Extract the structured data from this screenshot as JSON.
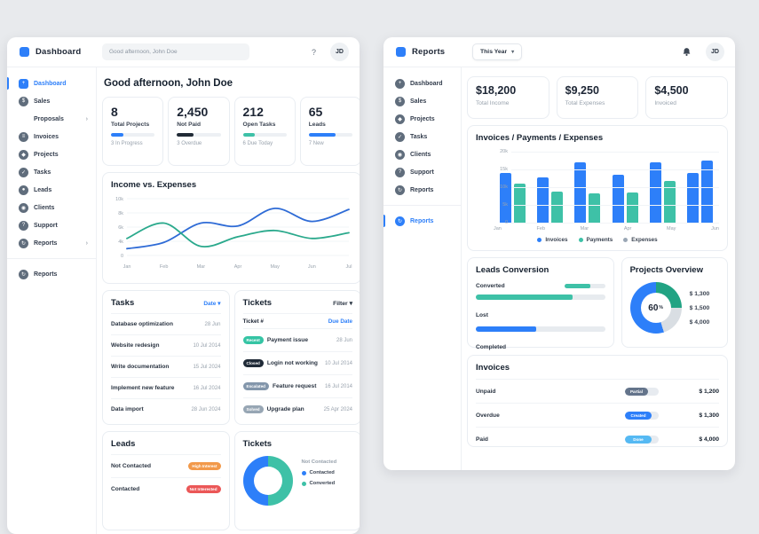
{
  "glyphs": {
    "caret": "▾",
    "chevron": "›"
  },
  "left": {
    "brand": "Dashboard",
    "search_value": "Good afternoon, John Doe",
    "help": "?",
    "avatar": "JD",
    "sidebar": [
      {
        "label": "Dashboard",
        "icon": "dashboard",
        "active": true,
        "shape": "square"
      },
      {
        "label": "Sales",
        "icon": "sales"
      },
      {
        "label": "Proposals",
        "sub": true,
        "chevron": true
      },
      {
        "label": "Invoices",
        "icon": "invoices"
      },
      {
        "label": "Projects",
        "icon": "projects"
      },
      {
        "label": "Tasks",
        "icon": "tasks"
      },
      {
        "label": "Leads",
        "icon": "leads"
      },
      {
        "label": "Clients",
        "icon": "clients"
      },
      {
        "label": "Support",
        "icon": "support"
      },
      {
        "label": "Reports",
        "icon": "reports",
        "chevron": true
      }
    ],
    "sidebar_footer": {
      "label": "Reports",
      "icon": "reports"
    },
    "greeting": "Good afternoon, John Doe",
    "stats": [
      {
        "value": "8",
        "label": "Total Projects",
        "sub": "3 In Progress",
        "bar_color": "#2d7ff9",
        "bar_pct": 28
      },
      {
        "value": "2,450",
        "label": "Not Paid",
        "sub": "3 Overdue",
        "bar_color": "#212b36",
        "bar_pct": 38
      },
      {
        "value": "212",
        "label": "Open Tasks",
        "sub": "6 Due Today",
        "bar_color": "#3ec1a7",
        "bar_pct": 28
      },
      {
        "value": "65",
        "label": "Leads",
        "sub": "7 New",
        "bar_color": "#2d7ff9",
        "bar_pct": 62
      }
    ],
    "tasks": {
      "title": "Tasks",
      "link": "Date ▾",
      "rows": [
        {
          "name": "Database optimization",
          "date": "28 Jun"
        },
        {
          "name": "Website redesign",
          "date": "10 Jul 2014"
        },
        {
          "name": "Write documentation",
          "date": "15 Jul 2024"
        },
        {
          "name": "Implement new feature",
          "date": "16 Jul 2024"
        },
        {
          "name": "Data import",
          "date": "28 Jun 2024"
        }
      ]
    },
    "tickets": {
      "title": "Tickets",
      "filter": "Filter ▾",
      "col_ticket": "Ticket #",
      "col_due": "Due Date",
      "rows": [
        {
          "badge": "Recent",
          "badge_bg": "#35c4a4",
          "name": "Payment issue",
          "date": "28 Jun"
        },
        {
          "badge": "Closed",
          "badge_bg": "#1f2a37",
          "name": "Login not working",
          "date": "10 Jul 2014"
        },
        {
          "badge": "Escalated",
          "badge_bg": "#8396ab",
          "name": "Feature request",
          "date": "16 Jul 2014"
        },
        {
          "badge": "Solved",
          "badge_bg": "#97a6b4",
          "name": "Upgrade plan",
          "date": "25 Apr 2024"
        }
      ]
    },
    "leads_card": {
      "title": "Leads",
      "rows": [
        {
          "label": "Not Contacted",
          "badge": "High Interest",
          "badge_bg": "#f2994a"
        },
        {
          "label": "Contacted",
          "badge": "Not Interested",
          "badge_bg": "#eb5757"
        }
      ]
    },
    "tickets_donut_card": {
      "title": "Tickets",
      "legend": [
        {
          "label": "Not Contacted",
          "color": ""
        },
        {
          "label": "Contacted",
          "color": "#2d7ff9"
        },
        {
          "label": "Converted",
          "color": "#3ec1a7"
        }
      ]
    }
  },
  "right": {
    "brand": "Reports",
    "period": "This Year",
    "avatar": "JD",
    "sidebar": [
      {
        "label": "Dashboard",
        "icon": "dashboard"
      },
      {
        "label": "Sales",
        "icon": "sales"
      },
      {
        "label": "Projects",
        "icon": "projects"
      },
      {
        "label": "Tasks",
        "icon": "tasks"
      },
      {
        "label": "Clients",
        "icon": "clients"
      },
      {
        "label": "Support",
        "icon": "support"
      },
      {
        "label": "Reports",
        "icon": "reports"
      }
    ],
    "sidebar_footer": {
      "label": "Reports",
      "icon": "reports",
      "active": true
    },
    "stats": [
      {
        "value": "$18,200",
        "label": "Total Income"
      },
      {
        "value": "$9,250",
        "label": "Total Expenses"
      },
      {
        "value": "$4,500",
        "label": "Invoiced"
      }
    ],
    "leads_conversion": {
      "title": "Leads Conversion",
      "converted_label": "Converted",
      "lost_label": "Lost",
      "completed_label": "Completed",
      "converted_mini_pct": 65,
      "converted_pct": 75,
      "lost_pct": 47,
      "teal": "#3ec1a7",
      "blue": "#2d7ff9"
    },
    "projects_overview": {
      "title": "Projects Overview",
      "center_value": "60",
      "center_unit": "%",
      "amounts": [
        "$ 1,300",
        "$ 1,500",
        "$ 4,000"
      ]
    },
    "invoices_card": {
      "title": "Invoices",
      "rows": [
        {
          "label": "Unpaid",
          "badge": "Partial",
          "badge_bg": "#64748b",
          "badge_w": 26,
          "amount": "$ 1,200"
        },
        {
          "label": "Overdue",
          "badge": "Created",
          "badge_bg": "#2d7ff9",
          "badge_w": 30,
          "amount": "$ 1,300"
        },
        {
          "label": "Paid",
          "badge": "Done",
          "badge_bg": "#55b9f3",
          "badge_w": 30,
          "amount": "$ 4,000"
        }
      ]
    }
  },
  "chart_data": [
    {
      "id": "income_expenses",
      "type": "line",
      "title": "Income vs. Expenses",
      "x": [
        "Jan",
        "Feb",
        "Mar",
        "Apr",
        "May",
        "Jun",
        "Jul"
      ],
      "y_ticks": [
        "10k",
        "8k",
        "6k",
        "4k",
        "0"
      ],
      "ylim": [
        0,
        10
      ],
      "series": [
        {
          "name": "Income",
          "color": "#2e6bd6",
          "values": [
            1.2,
            2.3,
            5.7,
            5.2,
            8.3,
            6.0,
            8.1
          ]
        },
        {
          "name": "Expenses",
          "color": "#2aa98c",
          "values": [
            3.0,
            5.7,
            1.6,
            3.3,
            4.4,
            3.0,
            4.0
          ]
        }
      ]
    },
    {
      "id": "invoices_payments_expenses",
      "type": "bar",
      "title": "Invoices / Payments / Expenses",
      "categories": [
        "Jan",
        "Feb",
        "Mar",
        "Apr",
        "May",
        "Jun"
      ],
      "y_ticks": [
        "20k",
        "15k",
        "10k",
        "5k",
        "0"
      ],
      "ylim": [
        0,
        20
      ],
      "series": [
        {
          "name": "Invoices",
          "color": "#2d7ff9",
          "values": [
            14,
            12.8,
            17,
            13.5,
            17,
            14
          ]
        },
        {
          "name": "Payments",
          "color": "#3ec1a7",
          "values": [
            11,
            8.7,
            8.2,
            8.5,
            11.8,
            17.5
          ],
          "color_overrides": {
            "5": "#2d7ff9"
          }
        },
        {
          "name": "Expenses",
          "color": "#9aa7b5",
          "values": []
        }
      ],
      "legend": [
        "Invoices",
        "Payments",
        "Expenses"
      ],
      "legend_colors": [
        "#2d7ff9",
        "#3ec1a7",
        "#9aa7b5"
      ]
    },
    {
      "id": "tickets_donut",
      "type": "pie",
      "title": "Tickets",
      "slices": [
        {
          "label": "Converted",
          "color": "#3ec1a7",
          "pct": 50
        },
        {
          "label": "Contacted",
          "color": "#2d7ff9",
          "pct": 50
        }
      ]
    },
    {
      "id": "projects_donut",
      "type": "pie",
      "title": "Projects Overview",
      "center": "60 %",
      "slices": [
        {
          "label": "",
          "color": "#21a383",
          "pct": 25
        },
        {
          "label": "",
          "color": "#d9dee3",
          "pct": 20
        },
        {
          "label": "",
          "color": "#2d7ff9",
          "pct": 55
        }
      ]
    }
  ]
}
